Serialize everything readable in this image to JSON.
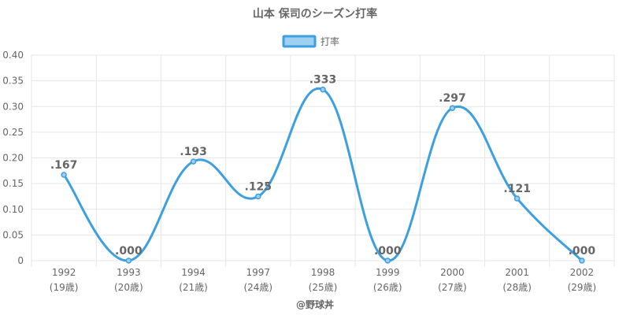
{
  "chart_data": {
    "type": "line",
    "title": "山本 保司のシーズン打率",
    "categories": [
      "1992",
      "1993",
      "1994",
      "1997",
      "1998",
      "1999",
      "2000",
      "2001",
      "2002"
    ],
    "age_labels": [
      "(19歳)",
      "(20歳)",
      "(21歳)",
      "(24歳)",
      "(25歳)",
      "(26歳)",
      "(27歳)",
      "(28歳)",
      "(29歳)"
    ],
    "series": [
      {
        "name": "打率",
        "values": [
          0.167,
          0.0,
          0.193,
          0.125,
          0.333,
          0.0,
          0.297,
          0.121,
          0.0
        ],
        "labels": [
          ".167",
          ".000",
          ".193",
          ".125",
          ".333",
          ".000",
          ".297",
          ".121",
          ".000"
        ],
        "color": "#3c9fe0",
        "fill": "#9fd0f2"
      }
    ],
    "ylim": [
      0,
      0.4
    ],
    "yticks": [
      0,
      0.05,
      0.1,
      0.15,
      0.2,
      0.25,
      0.3,
      0.35,
      0.4
    ],
    "ytick_labels": [
      "0",
      "0.05",
      "0.10",
      "0.15",
      "0.20",
      "0.25",
      "0.30",
      "0.35",
      "0.40"
    ],
    "grid": true,
    "legend": "top",
    "credit": "@野球丼"
  }
}
